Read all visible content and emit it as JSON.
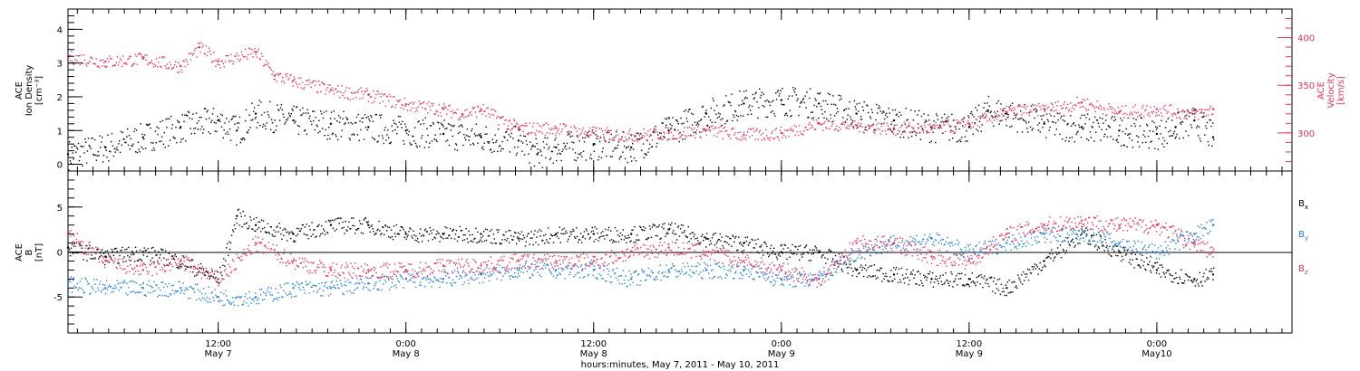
{
  "xlabel": "hours:minutes, May  7, 2011 - May 10, 2011",
  "x_ticks": [
    {
      "time": "12:00",
      "day": "May 7",
      "t": 0.5
    },
    {
      "time": "0:00",
      "day": "May 8",
      "t": 1.0
    },
    {
      "time": "12:00",
      "day": "May 8",
      "t": 1.5
    },
    {
      "time": "0:00",
      "day": "May 9",
      "t": 2.0
    },
    {
      "time": "12:00",
      "day": "May 9",
      "t": 2.5
    },
    {
      "time": "0:00",
      "day": "May10",
      "t": 3.0
    }
  ],
  "xlim": [
    0.1,
    3.36
  ],
  "panels": {
    "density": {
      "ylabel_lines": [
        "ACE",
        "Ion Density",
        "[cm⁻³]"
      ],
      "ylim": [
        -0.2,
        4.6
      ],
      "yticks": [
        "0",
        "1",
        "2",
        "3",
        "4"
      ],
      "color": "#000000"
    },
    "velocity": {
      "ylabel_lines": [
        "ACE",
        "Velocity",
        "[km/s]"
      ],
      "ylim": [
        260,
        430
      ],
      "yticks": [
        "300",
        "350",
        "400"
      ],
      "color": "#e8325e"
    },
    "field": {
      "ylabel_lines": [
        "ACE",
        "B",
        "[nT]"
      ],
      "ylim": [
        -9,
        9
      ],
      "yticks": [
        "-5",
        "0",
        "5"
      ],
      "legend": [
        {
          "label": "B",
          "sub": "x",
          "color": "#000000"
        },
        {
          "label": "B",
          "sub": "y",
          "color": "#1f7fe0"
        },
        {
          "label": "B",
          "sub": "z",
          "color": "#e8325e"
        }
      ]
    }
  },
  "chart_data": [
    {
      "type": "scatter",
      "title": "",
      "xlabel": "hours:minutes, May  7, 2011 - May 10, 2011",
      "ylabel": "ACE Ion Density [cm-3]",
      "ylim": [
        -0.2,
        4.6
      ],
      "series": [
        {
          "color": "#000000",
          "x": [
            0.1,
            0.2,
            0.3,
            0.4,
            0.5,
            0.55,
            0.6,
            0.7,
            0.8,
            0.9,
            1.0,
            1.1,
            1.2,
            1.3,
            1.35,
            1.4,
            1.5,
            1.6,
            1.7,
            1.8,
            1.9,
            2.0,
            2.1,
            2.2,
            2.3,
            2.4,
            2.5,
            2.55,
            2.6,
            2.7,
            2.8,
            2.9,
            3.0,
            3.05,
            3.1,
            3.15
          ],
          "y": [
            0.3,
            0.5,
            0.8,
            1.1,
            1.3,
            1.0,
            1.5,
            1.3,
            1.2,
            1.1,
            1.0,
            0.9,
            0.8,
            0.7,
            0.3,
            0.5,
            0.6,
            0.5,
            1.0,
            1.5,
            1.8,
            1.9,
            1.8,
            1.5,
            1.3,
            1.1,
            1.1,
            1.6,
            1.5,
            1.2,
            1.1,
            1.0,
            0.9,
            1.1,
            1.3,
            0.8
          ]
        }
      ]
    },
    {
      "type": "scatter",
      "ylabel": "ACE Velocity [km/s]",
      "ylim": [
        260,
        430
      ],
      "series": [
        {
          "color": "#e8325e",
          "x": [
            0.1,
            0.2,
            0.3,
            0.4,
            0.45,
            0.5,
            0.6,
            0.65,
            0.7,
            0.8,
            0.9,
            1.0,
            1.1,
            1.15,
            1.2,
            1.3,
            1.4,
            1.5,
            1.6,
            1.7,
            1.8,
            1.9,
            2.0,
            2.1,
            2.2,
            2.3,
            2.4,
            2.5,
            2.6,
            2.7,
            2.8,
            2.9,
            3.0,
            3.1,
            3.15
          ],
          "y": [
            380,
            375,
            378,
            370,
            390,
            375,
            385,
            360,
            355,
            345,
            340,
            330,
            325,
            320,
            325,
            305,
            305,
            300,
            298,
            300,
            303,
            298,
            300,
            310,
            308,
            305,
            305,
            310,
            322,
            325,
            332,
            322,
            325,
            320,
            325
          ]
        }
      ]
    },
    {
      "type": "scatter",
      "ylabel": "ACE B [nT]",
      "ylim": [
        -9,
        9
      ],
      "series": [
        {
          "label": "B",
          "sub": "x",
          "color": "#000000",
          "x": [
            0.1,
            0.2,
            0.3,
            0.4,
            0.5,
            0.55,
            0.6,
            0.7,
            0.8,
            0.9,
            1.0,
            1.1,
            1.2,
            1.3,
            1.4,
            1.5,
            1.6,
            1.7,
            1.8,
            1.9,
            2.0,
            2.1,
            2.2,
            2.3,
            2.4,
            2.5,
            2.6,
            2.7,
            2.8,
            2.9,
            3.0,
            3.1,
            3.15
          ],
          "y": [
            0.5,
            -0.5,
            0,
            -1,
            -3,
            4,
            3,
            2,
            3,
            3,
            2,
            2,
            2,
            1.5,
            2,
            2,
            2,
            2.5,
            1.5,
            1,
            0,
            0,
            -2,
            -2.5,
            -3,
            -3,
            -4,
            -1,
            2,
            0,
            -2,
            -3,
            -2.5
          ]
        },
        {
          "label": "B",
          "sub": "y",
          "color": "#1f7fe0",
          "x": [
            0.1,
            0.2,
            0.3,
            0.4,
            0.5,
            0.6,
            0.7,
            0.8,
            0.9,
            1.0,
            1.1,
            1.2,
            1.3,
            1.4,
            1.5,
            1.6,
            1.7,
            1.8,
            1.9,
            2.0,
            2.1,
            2.2,
            2.3,
            2.4,
            2.5,
            2.6,
            2.7,
            2.8,
            2.9,
            3.0,
            3.1,
            3.15
          ],
          "y": [
            -3.5,
            -4,
            -4,
            -4,
            -5,
            -5,
            -4,
            -4,
            -3.5,
            -3,
            -3,
            -2.5,
            -2,
            -2,
            -2,
            -3,
            -2,
            -2,
            -2,
            -3,
            -3,
            0,
            1,
            1.5,
            0,
            1,
            2,
            2,
            1,
            0,
            2,
            3
          ]
        },
        {
          "label": "B",
          "sub": "z",
          "color": "#e8325e",
          "x": [
            0.1,
            0.2,
            0.3,
            0.4,
            0.5,
            0.6,
            0.7,
            0.8,
            0.9,
            1.0,
            1.1,
            1.2,
            1.3,
            1.4,
            1.5,
            1.6,
            1.7,
            1.8,
            1.9,
            2.0,
            2.1,
            2.2,
            2.3,
            2.4,
            2.5,
            2.6,
            2.7,
            2.8,
            2.9,
            3.0,
            3.1,
            3.15
          ],
          "y": [
            2,
            -1,
            -2,
            -1,
            -3,
            1,
            -1,
            -2,
            -2,
            -2,
            -1.5,
            -1.5,
            -1,
            -1,
            -1,
            0,
            0.5,
            0,
            -1,
            -2,
            -3,
            1,
            1,
            -0.5,
            -1,
            2,
            3,
            3.5,
            3,
            3,
            1,
            0
          ]
        }
      ]
    }
  ]
}
